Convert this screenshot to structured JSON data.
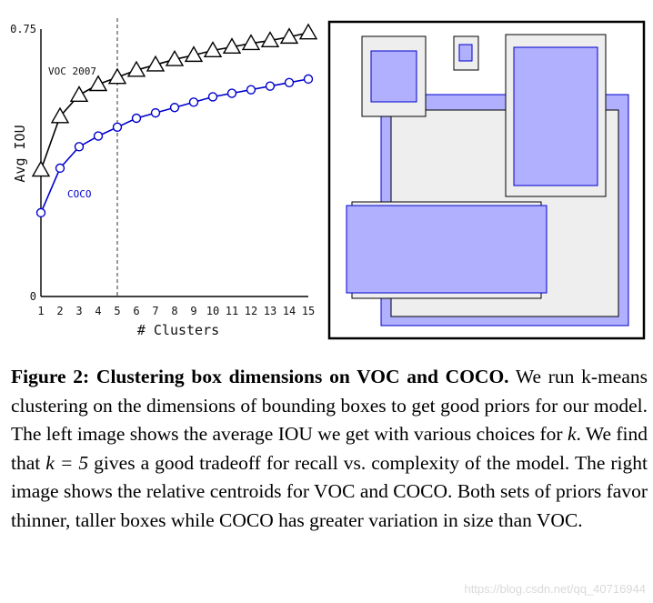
{
  "chart_data": {
    "type": "line",
    "x": [
      1,
      2,
      3,
      4,
      5,
      6,
      7,
      8,
      9,
      10,
      11,
      12,
      13,
      14,
      15
    ],
    "series": [
      {
        "name": "VOC 2007",
        "marker": "triangle",
        "color": "#000000",
        "values": [
          0.355,
          0.505,
          0.565,
          0.595,
          0.615,
          0.635,
          0.65,
          0.665,
          0.677,
          0.69,
          0.7,
          0.71,
          0.718,
          0.728,
          0.74
        ]
      },
      {
        "name": "COCO",
        "marker": "circle",
        "color": "#0000cc",
        "values": [
          0.235,
          0.36,
          0.42,
          0.45,
          0.475,
          0.5,
          0.515,
          0.53,
          0.545,
          0.56,
          0.57,
          0.58,
          0.59,
          0.6,
          0.61
        ]
      }
    ],
    "xlabel": "# Clusters",
    "ylabel": "Avg IOU",
    "ylim": [
      0,
      0.75
    ],
    "xlim": [
      1,
      15
    ],
    "y_tick_labels": [
      "0",
      "0.75"
    ],
    "x_tick_labels": [
      "1",
      "2",
      "3",
      "4",
      "5",
      "6",
      "7",
      "8",
      "9",
      "10",
      "11",
      "12",
      "13",
      "14",
      "15"
    ],
    "reference_line_x": 5,
    "grid": false
  },
  "colors": {
    "voc_gray_fill": "#eeeeee",
    "coco_blue_fill": "#b0b0ff",
    "coco_blue_stroke": "#0000cc"
  },
  "caption": {
    "label": "Figure 2:",
    "title": "Clustering box dimensions on VOC and COCO.",
    "body_1": "We run k-means clustering on the dimensions of bounding boxes to get good priors for our model. The left image shows the average IOU we get with various choices for",
    "k1": "k",
    "body_2": ". We find that",
    "k_eq": "k = 5",
    "body_3": "gives a good tradeoff for recall vs. complexity of the model. The right image shows the relative centroids for VOC and COCO. Both sets of priors favor thinner, taller boxes while COCO has greater variation in size than VOC."
  },
  "watermark": "https://blog.csdn.net/qq_40716944"
}
